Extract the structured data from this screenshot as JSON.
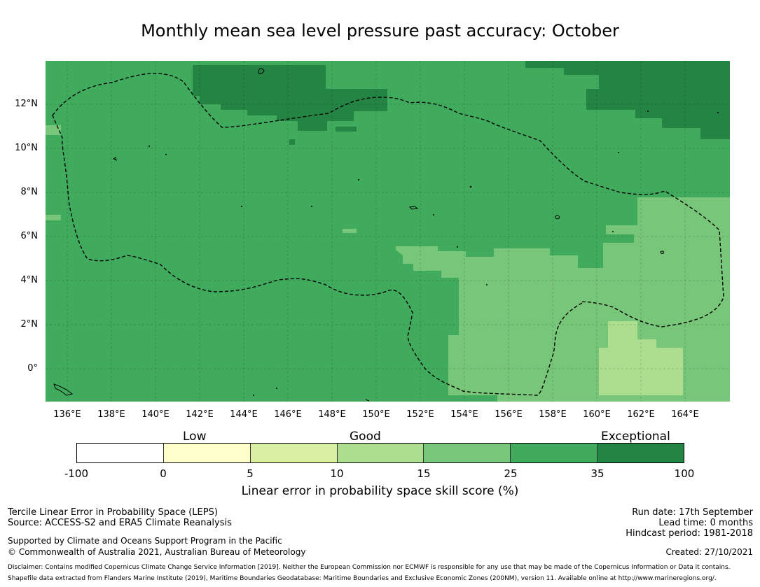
{
  "title": "Monthly mean sea level pressure past accuracy: October",
  "map": {
    "y_ticks": [
      "12°N",
      "10°N",
      "8°N",
      "6°N",
      "4°N",
      "2°N",
      "0°"
    ],
    "x_ticks": [
      "136°E",
      "138°E",
      "140°E",
      "142°E",
      "144°E",
      "146°E",
      "148°E",
      "150°E",
      "152°E",
      "154°E",
      "156°E",
      "158°E",
      "160°E",
      "162°E",
      "164°E"
    ],
    "colors": {
      "exceptional": "#238443",
      "very_good": "#41ab5d",
      "good": "#78c679",
      "moderate": "#addd8e",
      "low": "#d9f0a3",
      "very_low": "#ffffcc",
      "none": "#ffffff"
    },
    "legend_ticks": [
      "-100",
      "0",
      "5",
      "10",
      "15",
      "25",
      "35",
      "100"
    ],
    "legend_categories": [
      "Low",
      "Good",
      "Exceptional"
    ],
    "legend_title": "Linear error in probability space skill score (%)"
  },
  "footer": {
    "method": "Tercile Linear Error in Probability Space (LEPS)",
    "source": "Source: ACCESS-S2 and ERA5 Climate Reanalysis",
    "support": "Supported by Climate and Oceans Support Program in the Pacific",
    "copyright": "© Commonwealth of Australia 2021, Australian Bureau of Meteorology",
    "run_date": "Run date: 17th September",
    "lead_time": "Lead time: 0 months",
    "hindcast": "Hindcast period: 1981-2018",
    "created": "Created: 27/10/2021",
    "disclaimer": "Disclaimer: Contains modified Copernicus Climate Change Service Information [2019]. Neither the European Commission nor ECMWF is responsible for any use that may be made of the Copernicus Information or Data it contains.",
    "shapefile": "Shapefile data extracted from Flanders Marine Institute (2019), Maritime Boundaries Geodatabase: Maritime Boundaries and Exclusive Economic Zones (200NM), version 11. Available online at http://www.marineregions.org/."
  }
}
